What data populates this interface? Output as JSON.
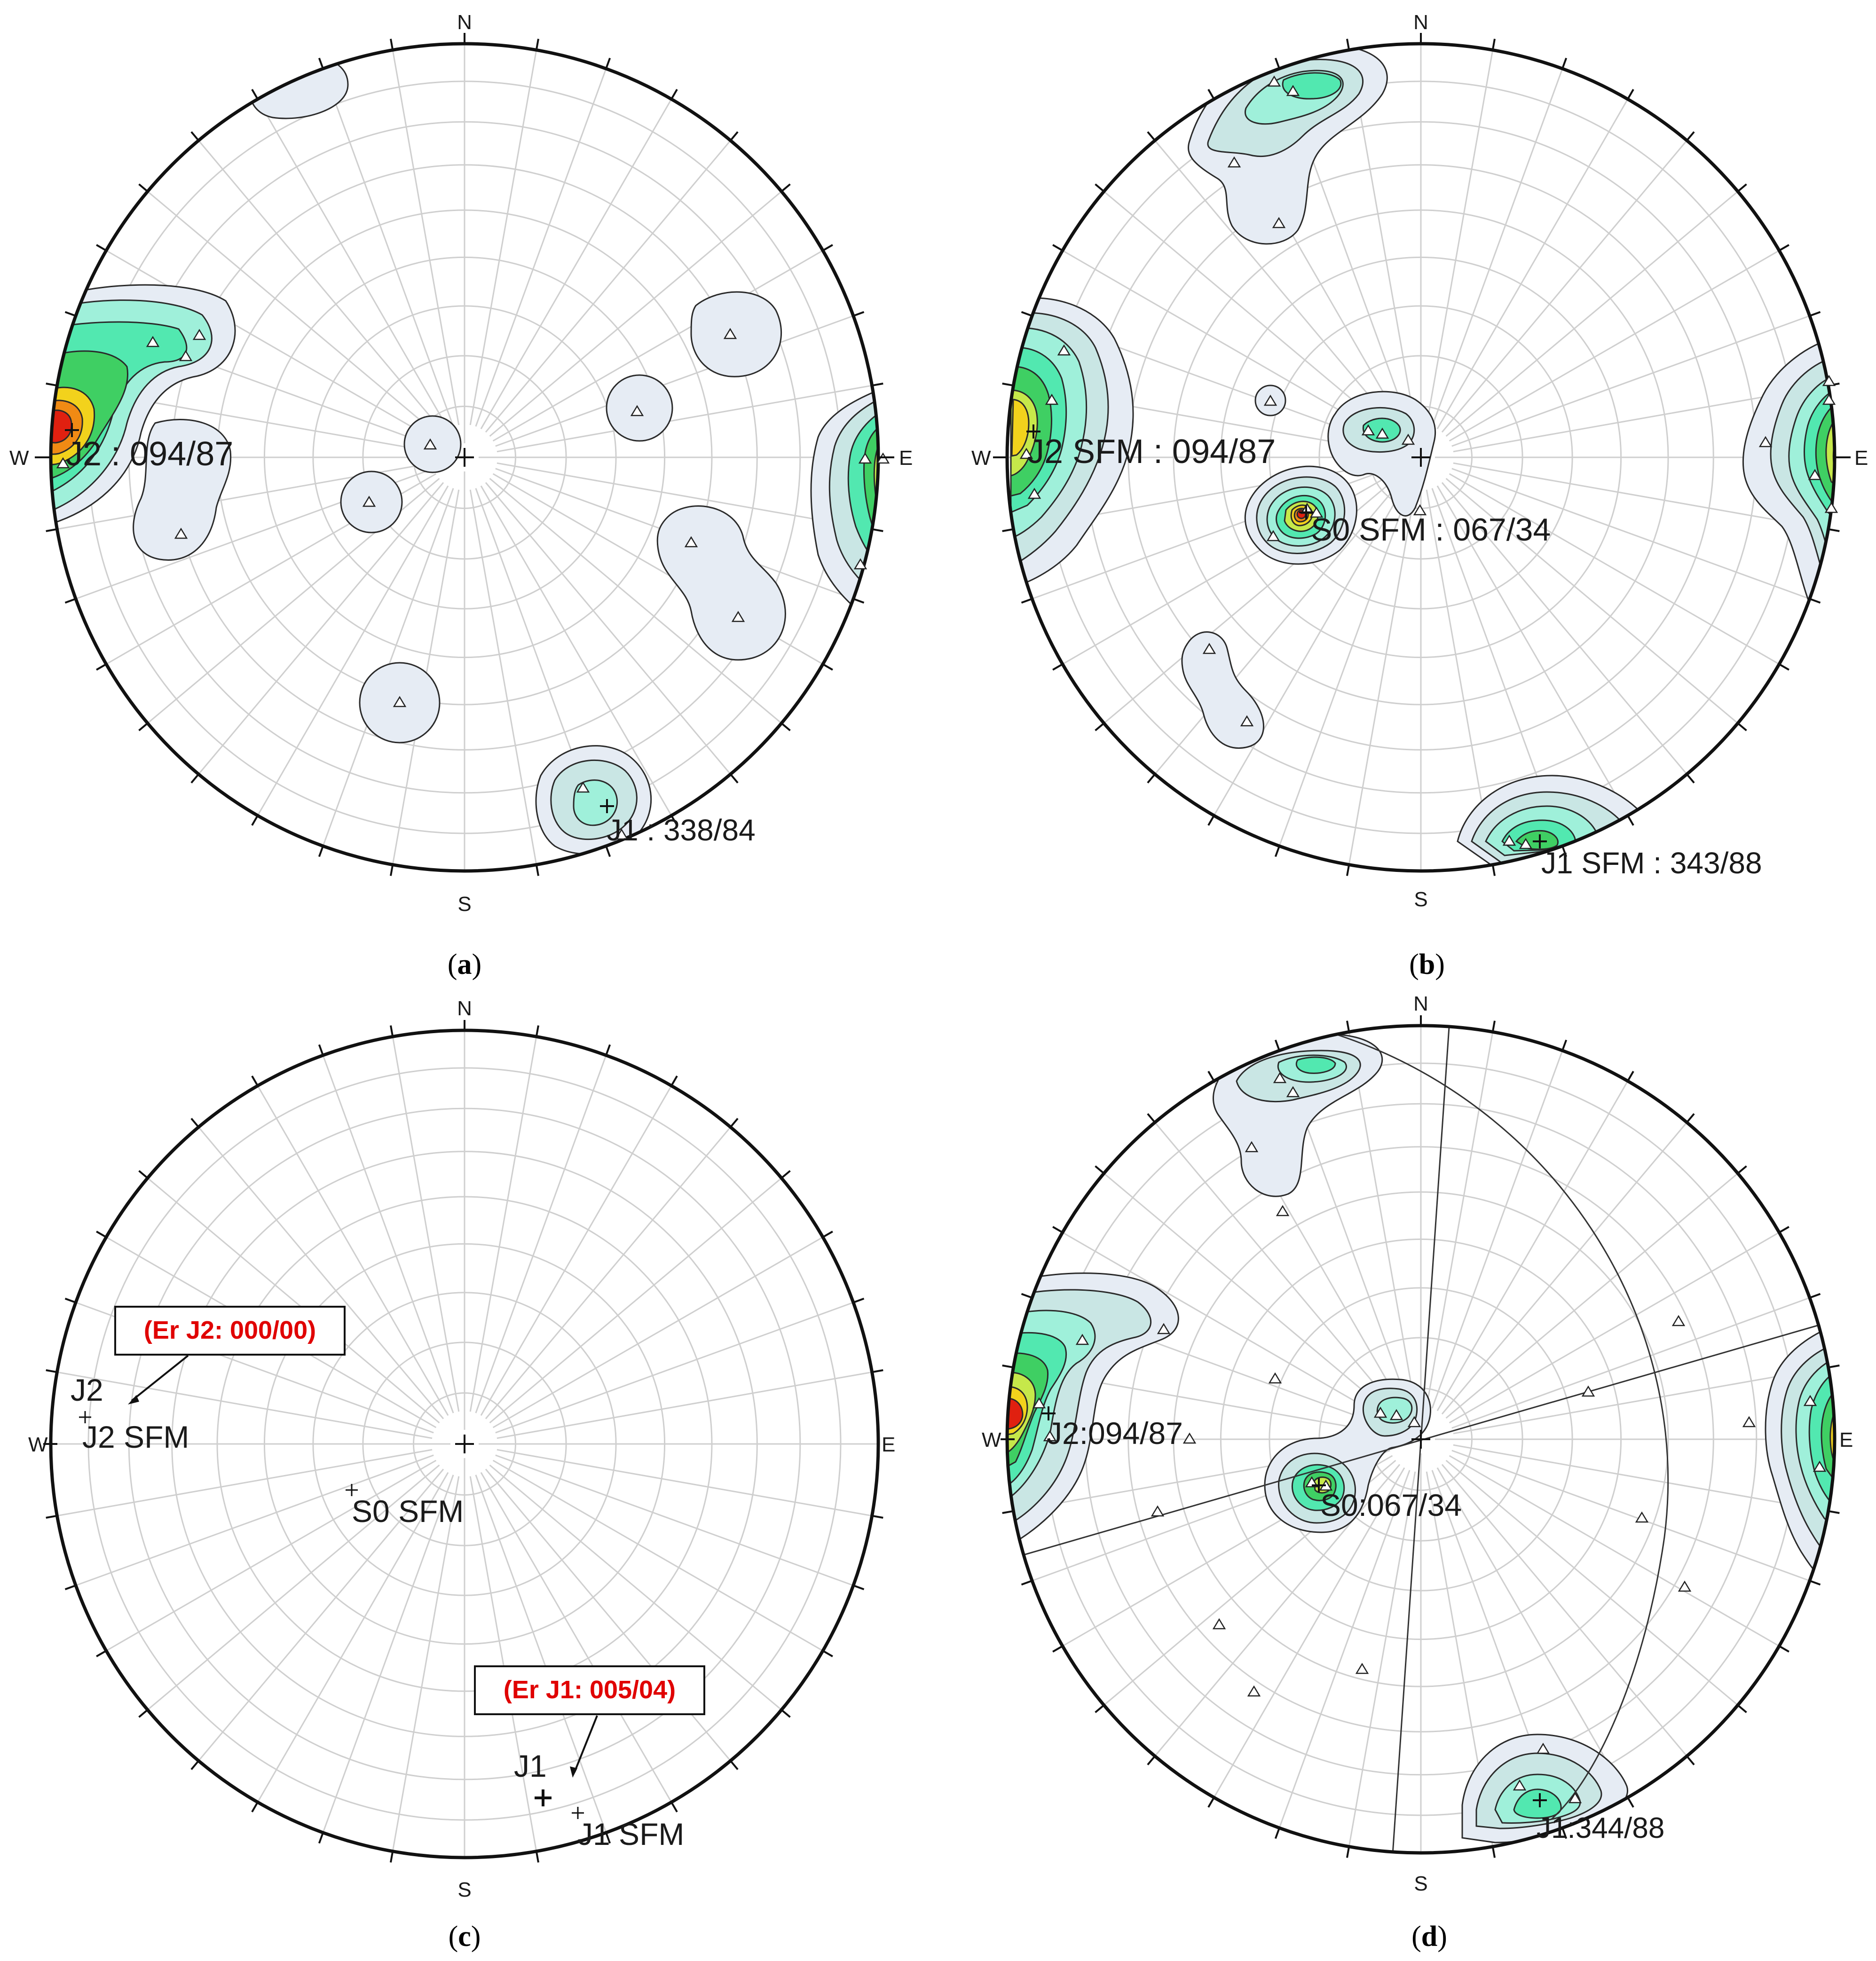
{
  "colors": {
    "grid": "#cfcfcf",
    "rim": "#111111",
    "contour_edge": "#2a2a2a",
    "error_text": "#e00000",
    "levels": [
      "#e6ecf4",
      "#c9e6e4",
      "#9ff0da",
      "#52e8b0",
      "#3fcf63",
      "#c6e84a",
      "#f2d21c",
      "#f08a14",
      "#e02010"
    ]
  },
  "panels": [
    {
      "id": "a",
      "caption": "a",
      "directions": {
        "n": "N",
        "s": "S",
        "e": "E",
        "w": "W"
      },
      "labels": [
        {
          "text": "J2 : 094/87"
        },
        {
          "text": "J1 : 338/84"
        }
      ]
    },
    {
      "id": "b",
      "caption": "b",
      "directions": {
        "n": "N",
        "s": "S",
        "e": "E",
        "w": "W"
      },
      "labels": [
        {
          "text": "J2 SFM : 094/87"
        },
        {
          "text": "S0 SFM : 067/34"
        },
        {
          "text": "J1 SFM : 343/88"
        }
      ]
    },
    {
      "id": "c",
      "caption": "c",
      "directions": {
        "n": "N",
        "s": "S",
        "e": "E",
        "w": "W"
      },
      "labels": [
        {
          "text": "J2"
        },
        {
          "text": "J2 SFM"
        },
        {
          "text": "S0 SFM"
        },
        {
          "text": "J1"
        },
        {
          "text": "J1 SFM"
        }
      ],
      "error_boxes": [
        {
          "text": "(Er J2: 000/00)"
        },
        {
          "text": "(Er J1: 005/04)"
        }
      ]
    },
    {
      "id": "d",
      "caption": "d",
      "directions": {
        "n": "N",
        "s": "S",
        "e": "E",
        "w": "W"
      },
      "labels": [
        {
          "text": "J2:094/87"
        },
        {
          "text": "S0:067/34"
        },
        {
          "text": "J1:344/88"
        }
      ]
    }
  ]
}
